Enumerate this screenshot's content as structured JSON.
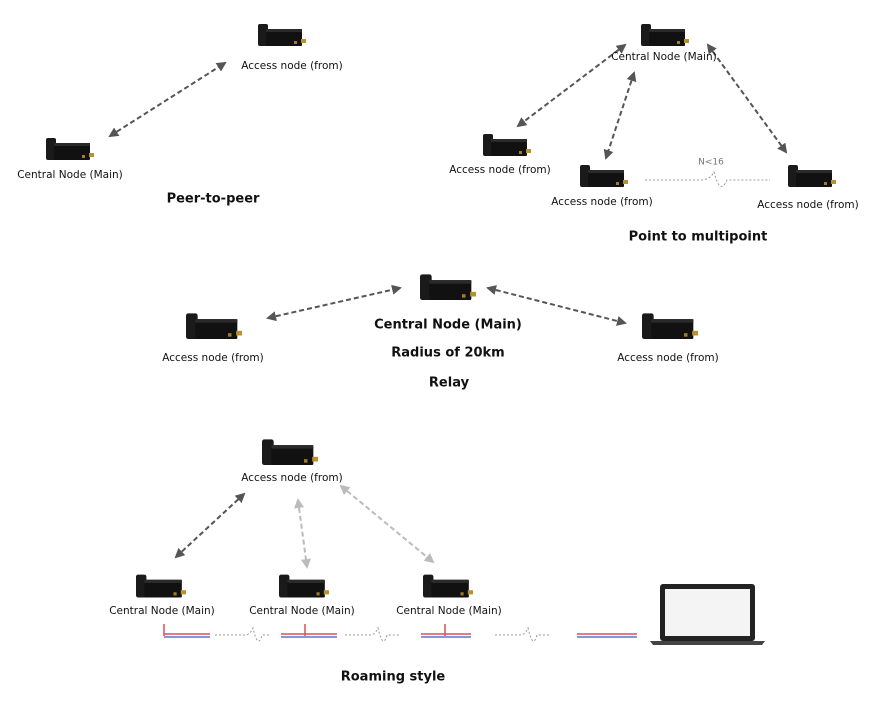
{
  "sections": [
    {
      "caption": "Peer-to-peer",
      "nodes": [
        {
          "label": "Access node (from)"
        },
        {
          "label": "Central Node (Main)"
        }
      ]
    },
    {
      "caption": "Point to multipoint",
      "note": "N<16",
      "nodes": [
        {
          "label": "Central Node (Main)"
        },
        {
          "label": "Access node (from)"
        },
        {
          "label": "Access node (from)"
        },
        {
          "label": "Access node (from)"
        }
      ]
    },
    {
      "caption": "Relay",
      "radius": "Radius of 20km",
      "nodes": [
        {
          "label": "Central Node (Main)"
        },
        {
          "label": "Access node (from)"
        },
        {
          "label": "Access node (from)"
        }
      ]
    },
    {
      "caption": "Roaming style",
      "nodes": [
        {
          "label": "Access node (from)"
        },
        {
          "label": "Central Node (Main)"
        },
        {
          "label": "Central Node (Main)"
        },
        {
          "label": "Central Node (Main)"
        }
      ]
    }
  ]
}
